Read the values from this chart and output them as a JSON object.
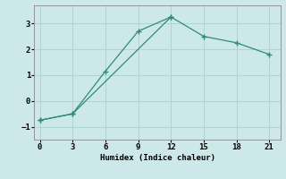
{
  "line1_x": [
    0,
    3,
    6,
    9,
    12
  ],
  "line1_y": [
    -0.75,
    -0.5,
    1.15,
    2.7,
    3.25
  ],
  "line2_x": [
    0,
    3,
    12,
    15,
    18,
    21
  ],
  "line2_y": [
    -0.75,
    -0.5,
    3.25,
    2.5,
    2.25,
    1.8
  ],
  "color": "#2e8b7a",
  "bg_color": "#cce8e8",
  "grid_color": "#aed4d4",
  "xlabel": "Humidex (Indice chaleur)",
  "xlim": [
    -0.5,
    22
  ],
  "ylim": [
    -1.5,
    3.7
  ],
  "xticks": [
    0,
    3,
    6,
    9,
    12,
    15,
    18,
    21
  ],
  "yticks": [
    -1,
    0,
    1,
    2,
    3
  ],
  "marker": "+"
}
